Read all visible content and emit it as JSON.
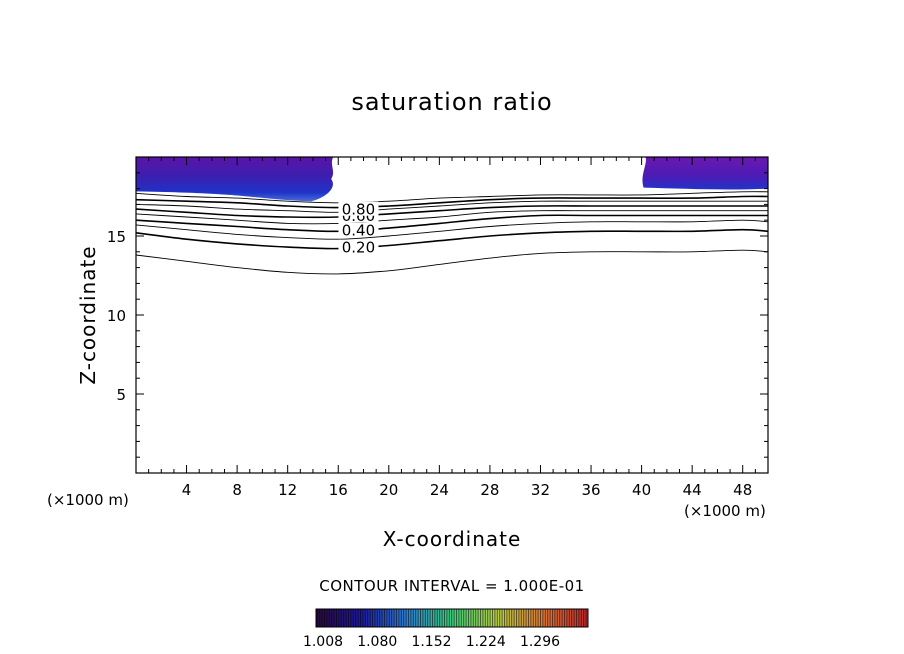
{
  "chart_data": {
    "type": "contour",
    "title": "saturation ratio",
    "xlabel": "X-coordinate",
    "ylabel": "Z-coordinate",
    "x_unit_left": "(×1000 m)",
    "x_unit_right": "(×1000 m)",
    "xlim": [
      0,
      50
    ],
    "ylim": [
      0,
      20
    ],
    "x_ticks": [
      4,
      8,
      12,
      16,
      20,
      24,
      28,
      32,
      36,
      40,
      44,
      48
    ],
    "y_ticks": [
      5,
      10,
      15
    ],
    "contour_interval_text": "CONTOUR INTERVAL = 1.000E-01",
    "contour_levels": [
      0.1,
      0.2,
      0.3,
      0.4,
      0.5,
      0.6,
      0.7,
      0.8,
      0.9
    ],
    "contour_labels": [
      {
        "text": "0.20",
        "x": 17.6,
        "z": 14.2
      },
      {
        "text": "0.40",
        "x": 17.6,
        "z": 15.3
      },
      {
        "text": "0.60",
        "x": 17.6,
        "z": 16.2
      },
      {
        "text": "0.80",
        "x": 17.6,
        "z": 16.6
      }
    ],
    "contour_x": [
      0,
      4,
      8,
      12,
      16,
      20,
      24,
      28,
      32,
      36,
      40,
      44,
      48,
      50
    ],
    "contours": [
      {
        "level": 0.1,
        "z": [
          13.8,
          13.4,
          13.0,
          12.7,
          12.6,
          12.8,
          13.2,
          13.6,
          13.9,
          14.0,
          14.0,
          14.0,
          14.1,
          14.0
        ]
      },
      {
        "level": 0.2,
        "z": [
          15.2,
          14.8,
          14.5,
          14.3,
          14.2,
          14.4,
          14.7,
          15.0,
          15.2,
          15.3,
          15.3,
          15.3,
          15.4,
          15.3
        ]
      },
      {
        "level": 0.3,
        "z": [
          15.7,
          15.4,
          15.1,
          14.9,
          14.8,
          15.0,
          15.3,
          15.6,
          15.8,
          15.9,
          15.9,
          15.9,
          16.0,
          15.9
        ]
      },
      {
        "level": 0.4,
        "z": [
          16.0,
          15.8,
          15.6,
          15.4,
          15.3,
          15.5,
          15.8,
          16.1,
          16.3,
          16.3,
          16.3,
          16.3,
          16.3,
          16.3
        ]
      },
      {
        "level": 0.5,
        "z": [
          16.4,
          16.2,
          16.0,
          15.8,
          15.8,
          16.0,
          16.2,
          16.5,
          16.6,
          16.6,
          16.6,
          16.6,
          16.6,
          16.6
        ]
      },
      {
        "level": 0.6,
        "z": [
          16.7,
          16.5,
          16.3,
          16.2,
          16.2,
          16.4,
          16.6,
          16.8,
          16.9,
          16.9,
          16.9,
          16.9,
          16.9,
          16.9
        ]
      },
      {
        "level": 0.7,
        "z": [
          17.0,
          16.9,
          16.7,
          16.6,
          16.5,
          16.7,
          16.9,
          17.1,
          17.2,
          17.2,
          17.2,
          17.2,
          17.2,
          17.2
        ]
      },
      {
        "level": 0.8,
        "z": [
          17.3,
          17.2,
          17.1,
          16.9,
          16.8,
          16.9,
          17.1,
          17.3,
          17.4,
          17.4,
          17.4,
          17.4,
          17.5,
          17.5
        ]
      },
      {
        "level": 0.9,
        "z": [
          17.7,
          17.5,
          17.4,
          17.2,
          17.1,
          17.2,
          17.4,
          17.5,
          17.6,
          17.6,
          17.6,
          17.7,
          17.8,
          17.8
        ]
      }
    ],
    "shaded_regions": [
      {
        "x_from": 0,
        "x_to": 15.6,
        "z_bottom": 17.7,
        "z_top": 20
      },
      {
        "x_from": 40,
        "x_to": 50,
        "z_bottom": 18.0,
        "z_top": 20
      }
    ],
    "colorbar": {
      "min": 1.008,
      "max": 1.368,
      "tick_labels": [
        "1.008",
        "1.080",
        "1.152",
        "1.224",
        "1.296"
      ],
      "colors": [
        "#2b0a3d",
        "#1d1a9e",
        "#2f7fd6",
        "#3fcf7a",
        "#b9d14a",
        "#e07a3a",
        "#c0262b"
      ]
    }
  }
}
